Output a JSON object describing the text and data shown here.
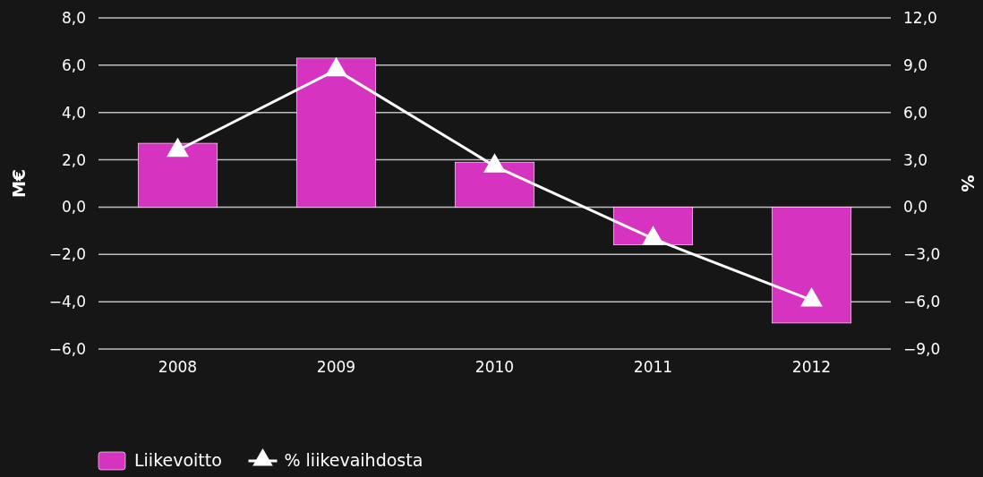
{
  "chart_data": {
    "type": "bar",
    "categories": [
      "2008",
      "2009",
      "2010",
      "2011",
      "2012"
    ],
    "ylabel": "M€",
    "y2label": "%",
    "series": [
      {
        "name": "Liikevoitto",
        "color": "#d633c0",
        "values": [
          2.7,
          6.3,
          1.9,
          -1.6,
          -4.9
        ]
      },
      {
        "name": "% liikevaihdosta",
        "type": "line",
        "axis": "y2",
        "color": "#ffffff",
        "marker": "triangle",
        "values": [
          3.6,
          8.7,
          2.6,
          -2.0,
          -5.9
        ]
      }
    ],
    "ylim": [
      -6,
      8
    ],
    "yticks": [
      {
        "value": -6,
        "label": "−6,0"
      },
      {
        "value": -4,
        "label": "−4,0"
      },
      {
        "value": -2,
        "label": "−2,0"
      },
      {
        "value": 0,
        "label": "0,0"
      },
      {
        "value": 2,
        "label": "2,0"
      },
      {
        "value": 4,
        "label": "4,0"
      },
      {
        "value": 6,
        "label": "6,0"
      },
      {
        "value": 8,
        "label": "8,0"
      }
    ],
    "y2lim": [
      -9,
      12
    ],
    "y2ticks": [
      {
        "value": -9,
        "label": "−9,0"
      },
      {
        "value": -6,
        "label": "−6,0"
      },
      {
        "value": -3,
        "label": "−3,0"
      },
      {
        "value": 0,
        "label": "0,0"
      },
      {
        "value": 3,
        "label": "3,0"
      },
      {
        "value": 6,
        "label": "6,0"
      },
      {
        "value": 9,
        "label": "9,0"
      },
      {
        "value": 12,
        "label": "12,0"
      }
    ],
    "grid": "y",
    "legend": "bottom left"
  }
}
